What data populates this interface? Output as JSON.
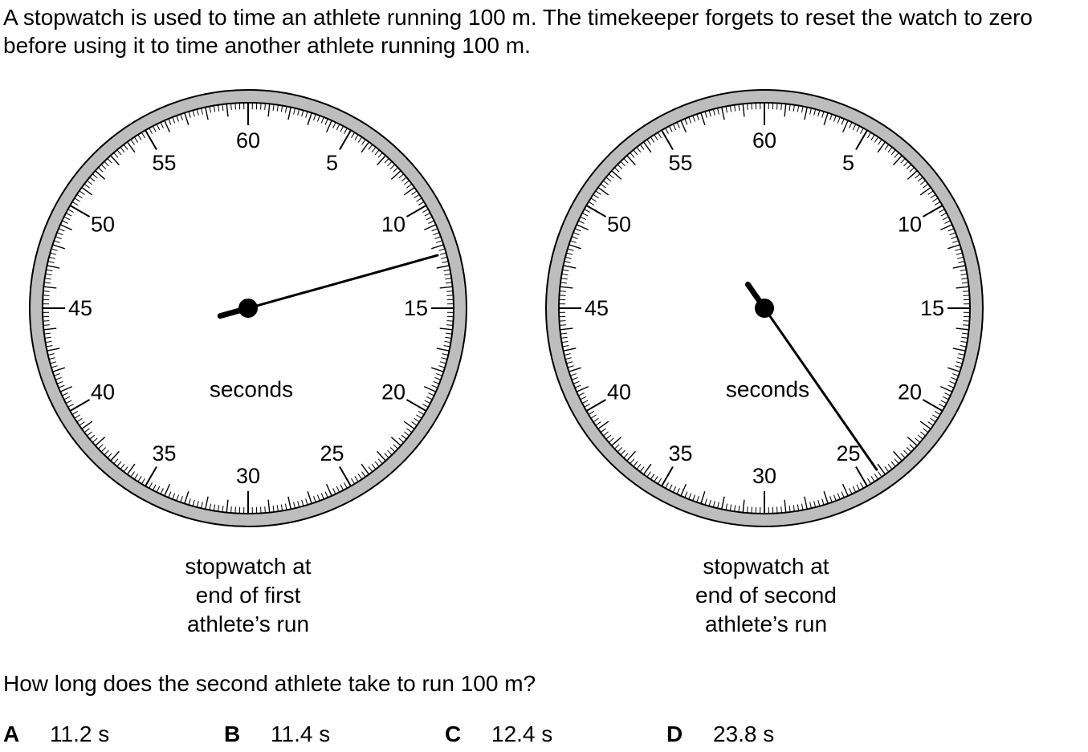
{
  "intro": "A stopwatch is used to time an athlete running 100 m. The timekeeper forgets to reset the watch to zero before using it to time another athlete running 100 m.",
  "dial_labels": [
    "60",
    "5",
    "10",
    "15",
    "20",
    "25",
    "30",
    "35",
    "40",
    "45",
    "50",
    "55"
  ],
  "stopwatches": [
    {
      "unit_label": "seconds",
      "hand_reading_seconds": 12.4,
      "caption_lines": [
        "stopwatch at",
        "end of first",
        "athlete’s run"
      ]
    },
    {
      "unit_label": "seconds",
      "hand_reading_seconds": 24.2,
      "caption_lines": [
        "stopwatch at",
        "end of second",
        "athlete’s run"
      ]
    }
  ],
  "colors": {
    "bezel": "#bdbdbd",
    "ink": "#000000",
    "face": "#ffffff"
  },
  "question": "How long does the second athlete take to run 100 m?",
  "options": [
    {
      "letter": "A",
      "text": "11.2 s"
    },
    {
      "letter": "B",
      "text": "11.4 s"
    },
    {
      "letter": "C",
      "text": "12.4 s"
    },
    {
      "letter": "D",
      "text": "23.8 s"
    }
  ]
}
